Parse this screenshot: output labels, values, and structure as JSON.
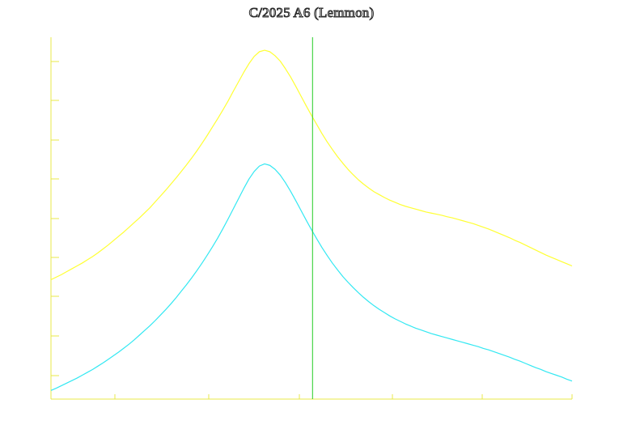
{
  "chart_data": {
    "type": "line",
    "title": "C/2025 A6 (Lemmon)",
    "xlabel": "",
    "ylabel": "",
    "x": [
      0,
      1,
      2,
      3,
      4,
      5,
      6,
      7,
      8,
      9,
      10,
      11,
      12,
      13,
      14,
      15,
      16,
      17,
      18,
      19,
      20,
      21,
      22,
      23,
      24,
      25,
      26,
      27,
      28,
      29,
      30,
      31,
      32,
      33,
      34,
      35,
      36,
      37,
      38,
      39,
      40,
      41,
      42,
      43,
      44,
      45,
      46,
      47,
      48,
      49,
      50,
      51,
      52,
      53,
      54,
      55,
      56,
      57,
      58,
      59,
      60,
      61,
      62,
      63,
      64,
      65,
      66,
      67,
      68,
      69,
      70,
      71,
      72,
      73,
      74,
      75,
      76,
      77,
      78,
      79,
      80,
      81,
      82,
      83,
      84,
      85,
      86,
      87,
      88,
      89,
      90,
      91,
      92,
      93,
      94,
      95,
      96,
      97,
      98,
      99,
      100
    ],
    "xlim": [
      0,
      100
    ],
    "ylim": [
      0,
      100
    ],
    "marker_line_x": 50.2,
    "series": [
      {
        "color": "#ffff33",
        "values": [
          33.0,
          33.7,
          34.4,
          35.2,
          36.0,
          36.8,
          37.6,
          38.5,
          39.4,
          40.4,
          41.5,
          42.6,
          43.8,
          45.0,
          46.2,
          47.5,
          48.8,
          50.1,
          51.5,
          52.9,
          54.5,
          56.1,
          57.7,
          59.4,
          61.1,
          62.9,
          64.7,
          66.6,
          68.6,
          70.7,
          72.9,
          75.2,
          77.5,
          79.9,
          82.4,
          85.1,
          87.7,
          90.3,
          92.7,
          94.7,
          96.0,
          96.4,
          96.0,
          94.9,
          93.4,
          91.3,
          89.0,
          86.4,
          83.7,
          81.0,
          78.4,
          75.9,
          73.4,
          71.1,
          69.0,
          67.0,
          65.2,
          63.5,
          62.0,
          60.6,
          59.4,
          58.3,
          57.3,
          56.5,
          55.7,
          55.0,
          54.4,
          53.8,
          53.3,
          52.9,
          52.5,
          52.1,
          51.7,
          51.4,
          51.1,
          50.8,
          50.4,
          50.1,
          49.7,
          49.3,
          48.9,
          48.5,
          48.0,
          47.5,
          47.0,
          46.4,
          45.8,
          45.2,
          44.6,
          43.9,
          43.3,
          42.6,
          41.9,
          41.2,
          40.5,
          39.8,
          39.2,
          38.6,
          38.0,
          37.4,
          36.8
        ]
      },
      {
        "color": "#33e8f2",
        "values": [
          2.4,
          3.0,
          3.7,
          4.4,
          5.1,
          5.8,
          6.6,
          7.4,
          8.2,
          9.1,
          10.0,
          11.0,
          12.0,
          13.0,
          14.1,
          15.2,
          16.4,
          17.7,
          19.0,
          20.3,
          21.7,
          23.2,
          24.7,
          26.3,
          28.0,
          29.8,
          31.6,
          33.5,
          35.5,
          37.6,
          39.8,
          42.1,
          44.5,
          47.1,
          49.8,
          52.6,
          55.4,
          58.2,
          60.8,
          62.9,
          64.4,
          65.0,
          64.6,
          63.5,
          61.9,
          59.8,
          57.4,
          54.8,
          52.1,
          49.4,
          46.8,
          44.3,
          41.9,
          39.7,
          37.6,
          35.7,
          33.9,
          32.3,
          30.8,
          29.4,
          28.1,
          26.9,
          25.8,
          24.8,
          23.9,
          23.0,
          22.2,
          21.5,
          20.8,
          20.2,
          19.6,
          19.1,
          18.6,
          18.1,
          17.7,
          17.3,
          16.9,
          16.5,
          16.1,
          15.7,
          15.3,
          14.9,
          14.5,
          14.0,
          13.6,
          13.1,
          12.6,
          12.1,
          11.6,
          11.0,
          10.5,
          9.9,
          9.3,
          8.7,
          8.2,
          7.6,
          7.1,
          6.6,
          6.1,
          5.5,
          5.0
        ]
      }
    ],
    "axis_color": "#e8e84a",
    "marker_color": "#22cc22",
    "grid": false
  }
}
